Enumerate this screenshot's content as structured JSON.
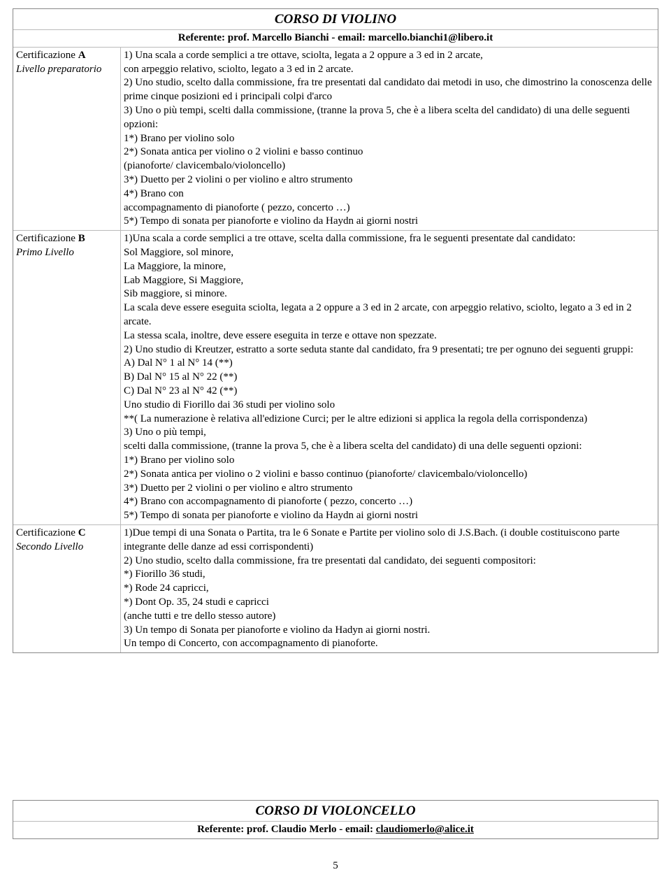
{
  "course1": {
    "title": "CORSO DI VIOLINO",
    "referente_label": "Referente: prof. Marcello Bianchi - email: marcello.bianchi1@libero.it",
    "rowA": {
      "cert_prefix": "Certificazione ",
      "cert_letter": "A",
      "level": "Livello preparatorio",
      "lines": [
        "1)  Una scala a corde semplici a tre ottave, sciolta, legata a 2 oppure a 3 ed in 2 arcate,",
        "con arpeggio relativo, sciolto, legato a 3 ed in 2 arcate.",
        "2) Uno studio, scelto dalla commissione, fra tre presentati dal candidato dai  metodi in uso, che dimostrino la conoscenza delle prime cinque posizioni ed i principali colpi d'arco",
        "3) Uno o più tempi, scelti dalla commissione, (tranne la prova 5, che è a libera scelta del candidato) di una delle seguenti opzioni:",
        "1*) Brano per violino solo",
        "2*) Sonata antica per violino o 2 violini e basso continuo",
        " (pianoforte/ clavicembalo/violoncello)",
        "3*) Duetto per 2 violini o per violino e altro strumento",
        "4*) Brano con",
        "accompagnamento di pianoforte ( pezzo, concerto …)",
        "5*) Tempo di sonata per pianoforte e violino da Haydn ai giorni nostri"
      ]
    },
    "rowB": {
      "cert_prefix": "Certificazione ",
      "cert_letter": "B",
      "level": "Primo Livello",
      "lines": [
        "1)Una scala a corde semplici a tre ottave, scelta dalla commissione, fra le seguenti presentate dal candidato:",
        "Sol Maggiore, sol minore,",
        "La Maggiore, la minore,",
        "Lab Maggiore, Si Maggiore,",
        "Sib maggiore, si minore.",
        "La scala deve essere eseguita sciolta, legata a 2 oppure a 3 ed in 2 arcate,  con arpeggio relativo, sciolto, legato a 3 ed in 2 arcate.",
        "La stessa scala, inoltre, deve essere eseguita in terze e ottave non spezzate.",
        "2) Uno studio di Kreutzer, estratto a sorte seduta stante dal candidato, fra 9 presentati; tre per ognuno dei seguenti gruppi:",
        "A) Dal N° 1 al N° 14   (**)",
        "B) Dal N° 15 al N° 22 (**)",
        "C) Dal N° 23 al N° 42 (**)",
        "Uno studio di Fiorillo dai 36 studi per violino solo",
        "**( La numerazione è relativa all'edizione Curci; per le altre edizioni si applica la regola della corrispondenza)",
        "3) Uno o più tempi,",
        "scelti dalla commissione, (tranne la prova 5, che è a libera scelta del candidato) di una delle seguenti opzioni:",
        "1*) Brano per violino solo",
        "2*) Sonata antica per violino o 2 violini e basso continuo (pianoforte/ clavicembalo/violoncello)",
        "3*) Duetto per 2 violini o per violino e altro strumento",
        "4*) Brano con accompagnamento di pianoforte ( pezzo, concerto …)",
        "5*) Tempo di sonata per pianoforte e violino da Haydn ai giorni nostri"
      ]
    },
    "rowC": {
      "cert_prefix": "Certificazione ",
      "cert_letter": "C",
      "level": "Secondo Livello",
      "lines": [
        "1)Due tempi  di una Sonata o Partita, tra le 6 Sonate e Partite per violino solo di J.S.Bach. (i double costituiscono parte integrante delle danze ad essi corrispondenti)",
        "2) Uno studio, scelto dalla commissione, fra tre presentati dal candidato, dei seguenti compositori:",
        "*) Fiorillo 36 studi,",
        "*) Rode 24 capricci,",
        "*) Dont Op. 35, 24 studi e capricci",
        "(anche tutti e tre dello stesso autore)",
        "3) Un tempo di Sonata per pianoforte e violino da Hadyn ai giorni nostri.",
        "Un tempo di Concerto, con accompagnamento di pianoforte."
      ]
    }
  },
  "course2": {
    "title": "CORSO DI VIOLONCELLO",
    "referente_prefix": "Referente: prof. Claudio Merlo - email: ",
    "referente_email": "claudiomerlo@alice.it"
  },
  "page_number": "5"
}
